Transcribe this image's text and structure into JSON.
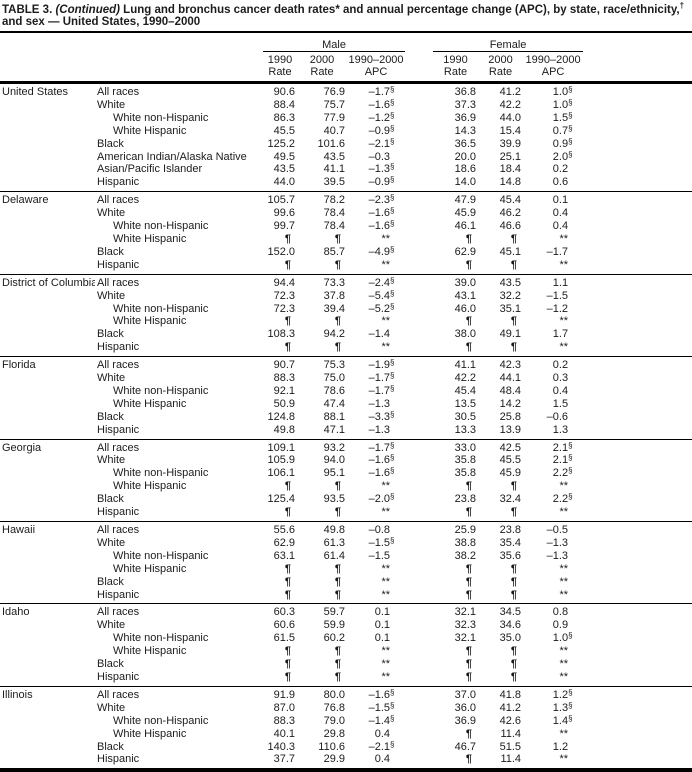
{
  "title": {
    "prefix": "TABLE 3.",
    "continued": " (Continued)",
    "segment1": " Lung and bronchus cancer death rates",
    "sup1": "*",
    "segment2": " and annual percentage change (APC), by state, race/ethnicity,",
    "sup2": "†",
    "segment3": " and sex — United States, 1990–2000"
  },
  "header": {
    "male": "Male",
    "female": "Female",
    "cols": [
      {
        "y": "1990",
        "l": "Rate"
      },
      {
        "y": "2000",
        "l": "Rate"
      },
      {
        "y": "1990–2000",
        "l": "APC"
      },
      {
        "y": "1990",
        "l": "Rate"
      },
      {
        "y": "2000",
        "l": "Rate"
      },
      {
        "y": "1990–2000",
        "l": "APC"
      }
    ]
  },
  "symbols": {
    "suppressed_rate": "¶",
    "suppressed_apc": "**",
    "statistically_significant": "§"
  },
  "table": {
    "sections": [
      {
        "state": "United States",
        "rows": [
          {
            "label": "All races",
            "indent": 0,
            "values": [
              "90.6",
              "76.9",
              "–1.7§",
              "36.8",
              "41.2",
              "1.0§"
            ]
          },
          {
            "label": "White",
            "indent": 0,
            "values": [
              "88.4",
              "75.7",
              "–1.6§",
              "37.3",
              "42.2",
              "1.0§"
            ]
          },
          {
            "label": "White non-Hispanic",
            "indent": 1,
            "values": [
              "86.3",
              "77.9",
              "–1.2§",
              "36.9",
              "44.0",
              "1.5§"
            ]
          },
          {
            "label": "White Hispanic",
            "indent": 1,
            "values": [
              "45.5",
              "40.7",
              "–0.9§",
              "14.3",
              "15.4",
              "0.7§"
            ]
          },
          {
            "label": "Black",
            "indent": 0,
            "values": [
              "125.2",
              "101.6",
              "–2.1§",
              "36.5",
              "39.9",
              "0.9§"
            ]
          },
          {
            "label": "American Indian/Alaska Native",
            "indent": 0,
            "values": [
              "49.5",
              "43.5",
              "–0.3",
              "20.0",
              "25.1",
              "2.0§"
            ]
          },
          {
            "label": "Asian/Pacific Islander",
            "indent": 0,
            "values": [
              "43.5",
              "41.1",
              "–1.3§",
              "18.6",
              "18.4",
              "0.2"
            ]
          },
          {
            "label": "Hispanic",
            "indent": 0,
            "values": [
              "44.0",
              "39.5",
              "–0.9§",
              "14.0",
              "14.8",
              "0.6"
            ]
          }
        ]
      },
      {
        "state": "Delaware",
        "rows": [
          {
            "label": "All races",
            "indent": 0,
            "values": [
              "105.7",
              "78.2",
              "–2.3§",
              "47.9",
              "45.4",
              "0.1"
            ]
          },
          {
            "label": "White",
            "indent": 0,
            "values": [
              "99.6",
              "78.4",
              "–1.6§",
              "45.9",
              "46.2",
              "0.4"
            ]
          },
          {
            "label": "White non-Hispanic",
            "indent": 1,
            "values": [
              "99.7",
              "78.4",
              "–1.6§",
              "46.1",
              "46.6",
              "0.4"
            ]
          },
          {
            "label": "White Hispanic",
            "indent": 1,
            "values": [
              "¶",
              "¶",
              "**",
              "¶",
              "¶",
              "**"
            ]
          },
          {
            "label": "Black",
            "indent": 0,
            "values": [
              "152.0",
              "85.7",
              "–4.9§",
              "62.9",
              "45.1",
              "–1.7"
            ]
          },
          {
            "label": "Hispanic",
            "indent": 0,
            "values": [
              "¶",
              "¶",
              "**",
              "¶",
              "¶",
              "**"
            ]
          }
        ]
      },
      {
        "state": "District of Columbia",
        "rows": [
          {
            "label": "All races",
            "indent": 0,
            "values": [
              "94.4",
              "73.3",
              "–2.4§",
              "39.0",
              "43.5",
              "1.1"
            ]
          },
          {
            "label": "White",
            "indent": 0,
            "values": [
              "72.3",
              "37.8",
              "–5.4§",
              "43.1",
              "32.2",
              "–1.5"
            ]
          },
          {
            "label": "White non-Hispanic",
            "indent": 1,
            "values": [
              "72.3",
              "39.4",
              "–5.2§",
              "46.0",
              "35.1",
              "–1.2"
            ]
          },
          {
            "label": "White Hispanic",
            "indent": 1,
            "values": [
              "¶",
              "¶",
              "**",
              "¶",
              "¶",
              "**"
            ]
          },
          {
            "label": "Black",
            "indent": 0,
            "values": [
              "108.3",
              "94.2",
              "–1.4",
              "38.0",
              "49.1",
              "1.7"
            ]
          },
          {
            "label": "Hispanic",
            "indent": 0,
            "values": [
              "¶",
              "¶",
              "**",
              "¶",
              "¶",
              "**"
            ]
          }
        ]
      },
      {
        "state": "Florida",
        "rows": [
          {
            "label": "All races",
            "indent": 0,
            "values": [
              "90.7",
              "75.3",
              "–1.9§",
              "41.1",
              "42.3",
              "0.2"
            ]
          },
          {
            "label": "White",
            "indent": 0,
            "values": [
              "88.3",
              "75.0",
              "–1.7§",
              "42.2",
              "44.1",
              "0.3"
            ]
          },
          {
            "label": "White non-Hispanic",
            "indent": 1,
            "values": [
              "92.1",
              "78.6",
              "–1.7§",
              "45.4",
              "48.4",
              "0.4"
            ]
          },
          {
            "label": "White Hispanic",
            "indent": 1,
            "values": [
              "50.9",
              "47.4",
              "–1.3",
              "13.5",
              "14.2",
              "1.5"
            ]
          },
          {
            "label": "Black",
            "indent": 0,
            "values": [
              "124.8",
              "88.1",
              "–3.3§",
              "30.5",
              "25.8",
              "–0.6"
            ]
          },
          {
            "label": "Hispanic",
            "indent": 0,
            "values": [
              "49.8",
              "47.1",
              "–1.3",
              "13.3",
              "13.9",
              "1.3"
            ]
          }
        ]
      },
      {
        "state": "Georgia",
        "rows": [
          {
            "label": "All races",
            "indent": 0,
            "values": [
              "109.1",
              "93.2",
              "–1.7§",
              "33.0",
              "42.5",
              "2.1§"
            ]
          },
          {
            "label": "White",
            "indent": 0,
            "values": [
              "105.9",
              "94.0",
              "–1.6§",
              "35.8",
              "45.5",
              "2.1§"
            ]
          },
          {
            "label": "White non-Hispanic",
            "indent": 1,
            "values": [
              "106.1",
              "95.1",
              "–1.6§",
              "35.8",
              "45.9",
              "2.2§"
            ]
          },
          {
            "label": "White Hispanic",
            "indent": 1,
            "values": [
              "¶",
              "¶",
              "**",
              "¶",
              "¶",
              "**"
            ]
          },
          {
            "label": "Black",
            "indent": 0,
            "values": [
              "125.4",
              "93.5",
              "–2.0§",
              "23.8",
              "32.4",
              "2.2§"
            ]
          },
          {
            "label": "Hispanic",
            "indent": 0,
            "values": [
              "¶",
              "¶",
              "**",
              "¶",
              "¶",
              "**"
            ]
          }
        ]
      },
      {
        "state": "Hawaii",
        "rows": [
          {
            "label": "All races",
            "indent": 0,
            "values": [
              "55.6",
              "49.8",
              "–0.8",
              "25.9",
              "23.8",
              "–0.5"
            ]
          },
          {
            "label": "White",
            "indent": 0,
            "values": [
              "62.9",
              "61.3",
              "–1.5§",
              "38.8",
              "35.4",
              "–1.3"
            ]
          },
          {
            "label": "White non-Hispanic",
            "indent": 1,
            "values": [
              "63.1",
              "61.4",
              "–1.5",
              "38.2",
              "35.6",
              "–1.3"
            ]
          },
          {
            "label": "White Hispanic",
            "indent": 1,
            "values": [
              "¶",
              "¶",
              "**",
              "¶",
              "¶",
              "**"
            ]
          },
          {
            "label": "Black",
            "indent": 0,
            "values": [
              "¶",
              "¶",
              "**",
              "¶",
              "¶",
              "**"
            ]
          },
          {
            "label": "Hispanic",
            "indent": 0,
            "values": [
              "¶",
              "¶",
              "**",
              "¶",
              "¶",
              "**"
            ]
          }
        ]
      },
      {
        "state": "Idaho",
        "rows": [
          {
            "label": "All races",
            "indent": 0,
            "values": [
              "60.3",
              "59.7",
              "0.1",
              "32.1",
              "34.5",
              "0.8"
            ]
          },
          {
            "label": "White",
            "indent": 0,
            "values": [
              "60.6",
              "59.9",
              "0.1",
              "32.3",
              "34.6",
              "0.9"
            ]
          },
          {
            "label": "White non-Hispanic",
            "indent": 1,
            "values": [
              "61.5",
              "60.2",
              "0.1",
              "32.1",
              "35.0",
              "1.0§"
            ]
          },
          {
            "label": "White Hispanic",
            "indent": 1,
            "values": [
              "¶",
              "¶",
              "**",
              "¶",
              "¶",
              "**"
            ]
          },
          {
            "label": "Black",
            "indent": 0,
            "values": [
              "¶",
              "¶",
              "**",
              "¶",
              "¶",
              "**"
            ]
          },
          {
            "label": "Hispanic",
            "indent": 0,
            "values": [
              "¶",
              "¶",
              "**",
              "¶",
              "¶",
              "**"
            ]
          }
        ]
      },
      {
        "state": "Illinois",
        "rows": [
          {
            "label": "All races",
            "indent": 0,
            "values": [
              "91.9",
              "80.0",
              "–1.6§",
              "37.0",
              "41.8",
              "1.2§"
            ]
          },
          {
            "label": "White",
            "indent": 0,
            "values": [
              "87.0",
              "76.8",
              "–1.5§",
              "36.0",
              "41.2",
              "1.3§"
            ]
          },
          {
            "label": "White non-Hispanic",
            "indent": 1,
            "values": [
              "88.3",
              "79.0",
              "–1.4§",
              "36.9",
              "42.6",
              "1.4§"
            ]
          },
          {
            "label": "White Hispanic",
            "indent": 1,
            "values": [
              "40.1",
              "29.8",
              "0.4",
              "¶",
              "11.4",
              "**"
            ]
          },
          {
            "label": "Black",
            "indent": 0,
            "values": [
              "140.3",
              "110.6",
              "–2.1§",
              "46.7",
              "51.5",
              "1.2"
            ]
          },
          {
            "label": "Hispanic",
            "indent": 0,
            "values": [
              "37.7",
              "29.9",
              "0.4",
              "¶",
              "11.4",
              "**"
            ]
          }
        ]
      }
    ]
  }
}
